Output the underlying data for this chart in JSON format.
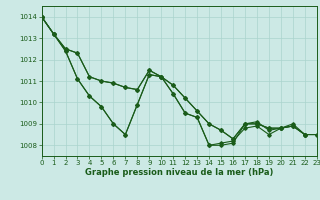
{
  "xlabel": "Graphe pression niveau de la mer (hPa)",
  "xlim": [
    0,
    23
  ],
  "ylim": [
    1007.5,
    1014.5
  ],
  "yticks": [
    1008,
    1009,
    1010,
    1011,
    1012,
    1013,
    1014
  ],
  "xticks": [
    0,
    1,
    2,
    3,
    4,
    5,
    6,
    7,
    8,
    9,
    10,
    11,
    12,
    13,
    14,
    15,
    16,
    17,
    18,
    19,
    20,
    21,
    22,
    23
  ],
  "background_color": "#cce9e5",
  "grid_color": "#aad4ce",
  "line_color": "#1a5c1a",
  "series1_x": [
    0,
    1,
    2,
    3,
    4,
    5,
    6,
    7,
    8,
    9,
    10,
    11,
    12,
    13,
    14,
    15,
    16,
    17,
    18,
    19,
    20,
    21,
    22
  ],
  "series1_y": [
    1014.0,
    1013.2,
    1012.4,
    1011.1,
    1010.3,
    1009.8,
    1009.0,
    1008.5,
    1009.9,
    1011.3,
    1011.2,
    1010.4,
    1009.5,
    1009.3,
    1008.0,
    1008.1,
    1008.2,
    1008.8,
    1008.9,
    1008.5,
    1008.8,
    1008.9,
    1008.5
  ],
  "series2_x": [
    0,
    1,
    2,
    3,
    4,
    5,
    6,
    7,
    8,
    9,
    10,
    11,
    12,
    13,
    14,
    15,
    16,
    17,
    18,
    19,
    20,
    21,
    22,
    23
  ],
  "series2_y": [
    1014.0,
    1013.2,
    1012.4,
    1011.1,
    1010.3,
    1009.8,
    1009.0,
    1008.5,
    1009.9,
    1011.3,
    1011.2,
    1010.4,
    1009.5,
    1009.3,
    1008.0,
    1008.0,
    1008.1,
    1009.0,
    1009.1,
    1008.7,
    1008.8,
    1009.0,
    1008.5,
    1008.5
  ],
  "series3_x": [
    0,
    1,
    2,
    3,
    4,
    5,
    6,
    7,
    8,
    9,
    10,
    11,
    12,
    13,
    14,
    15,
    16,
    17,
    18,
    19,
    20,
    21,
    22
  ],
  "series3_y": [
    1014.0,
    1013.2,
    1012.5,
    1012.3,
    1011.2,
    1011.0,
    1010.9,
    1010.7,
    1010.6,
    1011.5,
    1011.2,
    1010.8,
    1010.2,
    1009.6,
    1009.0,
    1008.7,
    1008.3,
    1009.0,
    1009.0,
    1008.8,
    1008.8,
    1008.9,
    1008.5
  ],
  "series4_x": [
    0,
    1,
    2,
    3,
    4,
    5,
    6,
    7,
    8,
    9,
    10,
    11,
    12,
    13,
    14,
    15,
    16,
    17,
    18,
    19,
    20,
    21,
    22,
    23
  ],
  "series4_y": [
    1014.0,
    1013.2,
    1012.5,
    1012.3,
    1011.2,
    1011.0,
    1010.9,
    1010.7,
    1010.6,
    1011.5,
    1011.2,
    1010.8,
    1010.2,
    1009.6,
    1009.0,
    1008.7,
    1008.3,
    1009.0,
    1009.0,
    1008.8,
    1008.8,
    1008.9,
    1008.5,
    1008.5
  ],
  "tick_fontsize": 5,
  "xlabel_fontsize": 6,
  "linewidth": 0.8,
  "markersize": 1.8
}
